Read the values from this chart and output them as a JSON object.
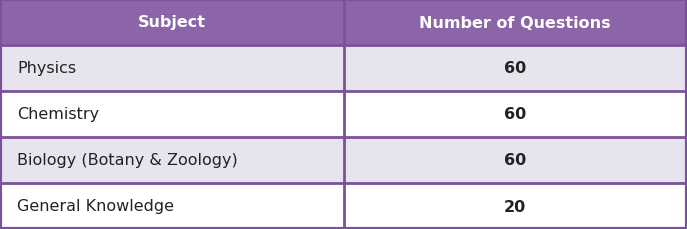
{
  "header": [
    "Subject",
    "Number of Questions"
  ],
  "rows": [
    [
      "Physics",
      "60"
    ],
    [
      "Chemistry",
      "60"
    ],
    [
      "Biology (Botany & Zoology)",
      "60"
    ],
    [
      "General Knowledge",
      "20"
    ]
  ],
  "header_bg_color": "#8B65A8",
  "header_text_color": "#FFFFFF",
  "row_bg_color_odd": "#E8E4EE",
  "row_bg_color_even": "#FFFFFF",
  "border_color": "#7B5299",
  "col_split": 0.5,
  "header_fontsize": 11.5,
  "row_fontsize": 11.5,
  "fig_width": 6.87,
  "fig_height": 2.3,
  "dpi": 100
}
